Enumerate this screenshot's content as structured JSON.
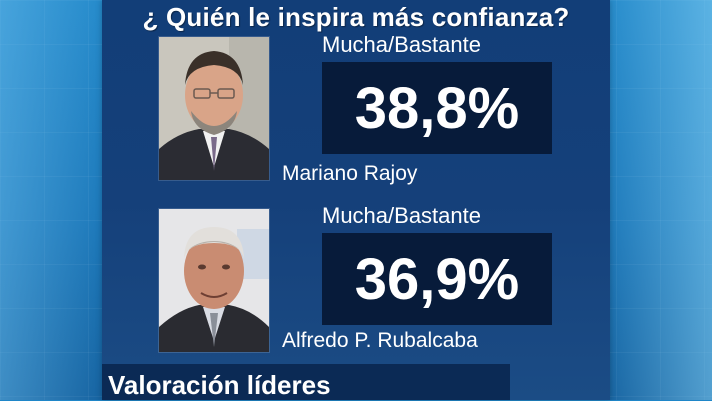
{
  "title": "¿ Quién le inspira más confianza?",
  "leaders": [
    {
      "name": "Mariano Rajoy",
      "category": "Mucha/Bastante",
      "value": "38,8%",
      "portrait": "portrait-mariano-rajoy"
    },
    {
      "name": "Alfredo P. Rubalcaba",
      "category": "Mucha/Bastante",
      "value": "36,9%",
      "portrait": "portrait-alfredo-rubalcaba"
    }
  ],
  "footer": {
    "text": "Valoración líderes"
  },
  "colors": {
    "panel": "#15407a",
    "value_box": "#071b3a",
    "background": "#1673b6",
    "text": "#ffffff"
  }
}
